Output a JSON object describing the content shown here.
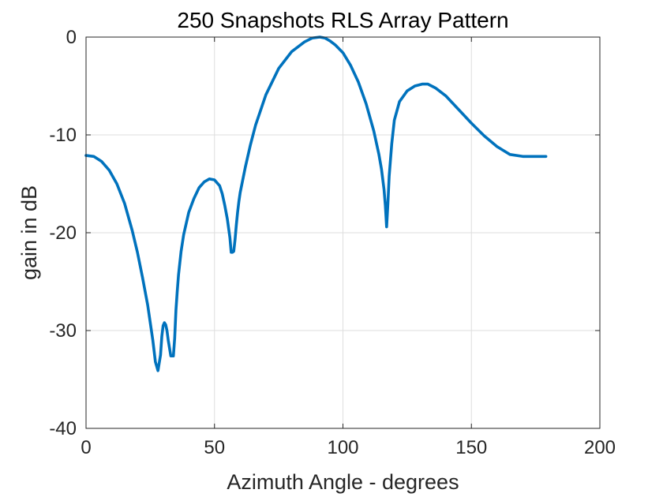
{
  "chart_data": {
    "type": "line",
    "title": "250 Snapshots RLS Array Pattern",
    "xlabel": "Azimuth Angle - degrees",
    "ylabel": "gain in dB",
    "xlim": [
      0,
      200
    ],
    "ylim": [
      -40,
      0
    ],
    "xticks": [
      0,
      50,
      100,
      150,
      200
    ],
    "yticks": [
      0,
      -10,
      -20,
      -30,
      -40
    ],
    "xtick_labels": [
      "0",
      "50",
      "100",
      "150",
      "200"
    ],
    "ytick_labels": [
      "0",
      "-10",
      "-20",
      "-30",
      "-40"
    ],
    "grid": true,
    "series": [
      {
        "color": "#0072BD",
        "x": [
          0,
          3,
          6,
          9,
          12,
          15,
          18,
          20,
          22,
          24,
          26,
          27,
          28,
          29,
          29.5,
          30,
          30.5,
          31,
          31.5,
          32,
          33,
          34,
          34.5,
          35,
          35.5,
          36,
          37,
          38,
          40,
          42,
          44,
          46,
          48,
          50,
          52,
          53,
          54,
          55,
          56,
          56.5,
          57,
          57.5,
          58,
          58.5,
          59,
          59.5,
          60,
          61,
          62,
          64,
          66,
          70,
          75,
          80,
          85,
          88,
          91,
          93,
          95,
          97,
          100,
          103,
          106,
          109,
          112,
          114,
          115,
          116,
          116.5,
          117,
          117.5,
          118,
          119,
          120,
          122,
          125,
          128,
          131,
          133,
          136,
          140,
          145,
          150,
          155,
          160,
          165,
          170,
          175,
          177,
          179
        ],
        "y": [
          -12.1,
          -12.2,
          -12.7,
          -13.6,
          -15.0,
          -17.0,
          -19.8,
          -22.0,
          -24.6,
          -27.4,
          -31.0,
          -33.2,
          -34.1,
          -32.5,
          -30.6,
          -29.5,
          -29.2,
          -29.4,
          -30.0,
          -31.0,
          -32.6,
          -32.6,
          -30.8,
          -27.9,
          -26.0,
          -24.3,
          -21.9,
          -20.2,
          -17.9,
          -16.5,
          -15.4,
          -14.8,
          -14.5,
          -14.6,
          -15.2,
          -16.0,
          -17.2,
          -18.6,
          -20.5,
          -22.0,
          -22.0,
          -21.9,
          -20.7,
          -19.2,
          -17.9,
          -16.8,
          -15.9,
          -14.6,
          -13.3,
          -11.0,
          -9.0,
          -5.9,
          -3.2,
          -1.5,
          -0.5,
          -0.1,
          0.0,
          -0.1,
          -0.4,
          -0.8,
          -1.6,
          -2.9,
          -4.6,
          -6.8,
          -9.6,
          -12.0,
          -13.5,
          -15.6,
          -17.2,
          -19.4,
          -17.0,
          -14.2,
          -10.9,
          -8.5,
          -6.6,
          -5.5,
          -5.0,
          -4.8,
          -4.8,
          -5.2,
          -6.0,
          -7.4,
          -8.8,
          -10.1,
          -11.2,
          -12.0,
          -12.2,
          -12.2,
          -12.2,
          -12.2
        ]
      }
    ]
  }
}
